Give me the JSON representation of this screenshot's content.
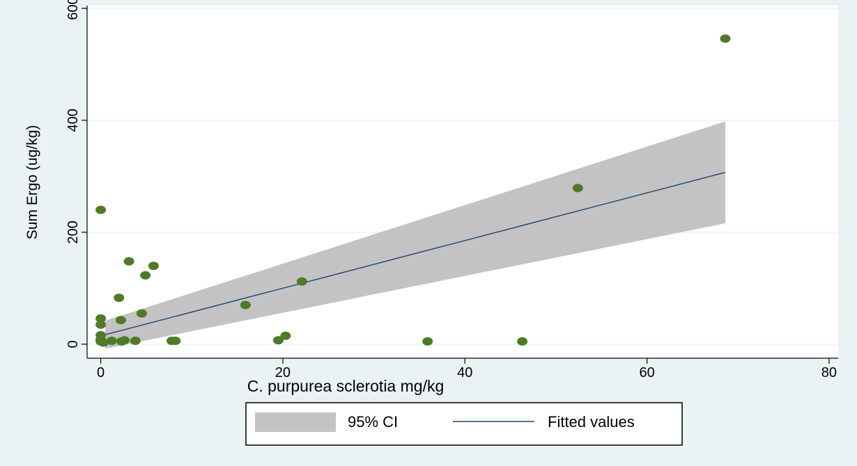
{
  "colors": {
    "background": "#eaf2f3",
    "plot_region": "#ffffff",
    "gridline": "#eaf2f3",
    "ci_band": "#c3c3c3",
    "fit_line": "#1a476f",
    "marker": "#4f7a28"
  },
  "chart_data": {
    "type": "scatter",
    "title": "",
    "xlabel": "C. purpurea sclerotia mg/kg",
    "ylabel": "Sum Ergo (ug/kg)",
    "xlim": [
      -1.5,
      81
    ],
    "ylim": [
      -25,
      605
    ],
    "xticks": [
      0,
      20,
      40,
      60,
      80
    ],
    "xtick_labels": [
      "0",
      "20",
      "40",
      "60",
      "80"
    ],
    "yticks": [
      0,
      200,
      400,
      600
    ],
    "ytick_labels": [
      "0",
      "200",
      "400",
      "600"
    ],
    "grid": true,
    "legend_position": "bottom",
    "legend": [
      {
        "key": "ci",
        "label": "95% CI"
      },
      {
        "key": "fit",
        "label": "Fitted values"
      }
    ],
    "scatter": {
      "x": [
        0,
        0,
        0,
        0,
        0,
        0,
        0.3,
        1.2,
        2.0,
        2.2,
        2.3,
        2.6,
        3.1,
        3.8,
        4.5,
        4.9,
        5.8,
        7.8,
        8.2,
        15.9,
        19.5,
        20.3,
        22.1,
        35.9,
        46.3,
        52.4,
        68.6
      ],
      "y": [
        240,
        46,
        35,
        16,
        8,
        5,
        3,
        6,
        83,
        43,
        5,
        7,
        148,
        6,
        55,
        123,
        140,
        6,
        6,
        70,
        7,
        15,
        112,
        5,
        5,
        279,
        546
      ]
    },
    "fitted": {
      "x": [
        0.5,
        68.6
      ],
      "y": [
        17,
        307
      ]
    },
    "ci_band": {
      "x": [
        0.5,
        68.6
      ],
      "upper": [
        42,
        398
      ],
      "lower": [
        -8,
        216
      ]
    }
  }
}
